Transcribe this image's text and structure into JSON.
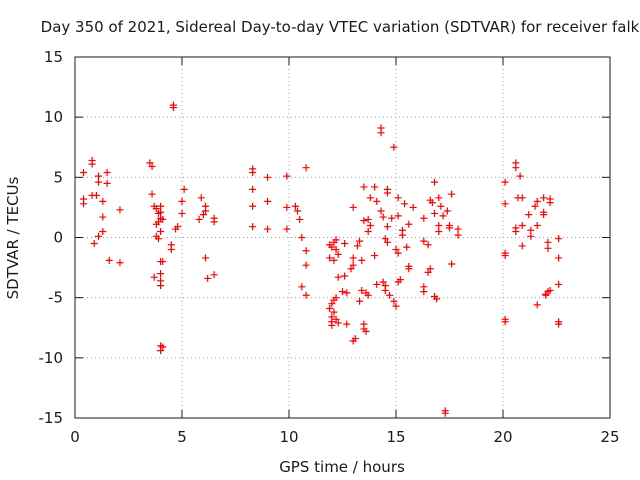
{
  "chart_data": {
    "type": "scatter",
    "title": "Day 350 of 2021, Sidereal Day-to-day VTEC variation (SDTVAR) for receiver falk",
    "xlabel": "GPS time / hours",
    "ylabel": "SDTVAR / TECUs",
    "xlim": [
      0,
      25
    ],
    "ylim": [
      -15,
      15
    ],
    "xticks": [
      0,
      5,
      10,
      15,
      20,
      25
    ],
    "yticks": [
      -15,
      -10,
      -5,
      0,
      5,
      10,
      15
    ],
    "grid": true,
    "marker": "+",
    "color": "#ff0000",
    "points": [
      [
        0.4,
        5.4
      ],
      [
        0.4,
        3.2
      ],
      [
        0.4,
        2.8
      ],
      [
        0.8,
        6.4
      ],
      [
        0.8,
        6.1
      ],
      [
        0.8,
        3.5
      ],
      [
        0.9,
        -0.5
      ],
      [
        1.0,
        3.5
      ],
      [
        1.1,
        5.1
      ],
      [
        1.1,
        4.6
      ],
      [
        1.1,
        0.1
      ],
      [
        1.3,
        3.0
      ],
      [
        1.3,
        1.7
      ],
      [
        1.3,
        0.5
      ],
      [
        1.5,
        5.4
      ],
      [
        1.5,
        4.5
      ],
      [
        1.6,
        -1.9
      ],
      [
        2.1,
        2.3
      ],
      [
        2.1,
        -2.1
      ],
      [
        3.5,
        6.2
      ],
      [
        3.6,
        5.9
      ],
      [
        3.6,
        3.6
      ],
      [
        3.7,
        2.6
      ],
      [
        3.7,
        -3.3
      ],
      [
        3.8,
        2.4
      ],
      [
        3.8,
        1.1
      ],
      [
        3.8,
        0.1
      ],
      [
        3.9,
        2.0
      ],
      [
        3.9,
        1.3
      ],
      [
        3.9,
        -0.1
      ],
      [
        4.0,
        2.6
      ],
      [
        4.0,
        2.1
      ],
      [
        4.0,
        1.6
      ],
      [
        4.0,
        0.5
      ],
      [
        4.0,
        -2.0
      ],
      [
        4.0,
        -3.0
      ],
      [
        4.0,
        -3.6
      ],
      [
        4.0,
        -4.0
      ],
      [
        4.0,
        -9.0
      ],
      [
        4.0,
        -9.4
      ],
      [
        4.1,
        1.5
      ],
      [
        4.1,
        -9.1
      ],
      [
        4.1,
        -2.0
      ],
      [
        4.5,
        -0.6
      ],
      [
        4.5,
        -1.0
      ],
      [
        4.6,
        11.0
      ],
      [
        4.6,
        10.8
      ],
      [
        4.7,
        0.7
      ],
      [
        4.8,
        0.9
      ],
      [
        5.0,
        2.0
      ],
      [
        5.0,
        3.0
      ],
      [
        5.1,
        4.0
      ],
      [
        5.8,
        1.5
      ],
      [
        5.9,
        3.3
      ],
      [
        6.0,
        1.9
      ],
      [
        6.1,
        2.6
      ],
      [
        6.1,
        2.2
      ],
      [
        6.1,
        -1.7
      ],
      [
        6.2,
        -3.4
      ],
      [
        6.5,
        1.6
      ],
      [
        6.5,
        1.3
      ],
      [
        6.5,
        -3.1
      ],
      [
        8.3,
        5.7
      ],
      [
        8.3,
        5.4
      ],
      [
        8.3,
        4.0
      ],
      [
        8.3,
        2.6
      ],
      [
        8.3,
        0.9
      ],
      [
        9.0,
        5.0
      ],
      [
        9.0,
        3.0
      ],
      [
        9.0,
        0.7
      ],
      [
        9.9,
        5.1
      ],
      [
        9.9,
        2.5
      ],
      [
        9.9,
        0.7
      ],
      [
        10.3,
        2.6
      ],
      [
        10.4,
        2.2
      ],
      [
        10.5,
        1.5
      ],
      [
        10.6,
        0.0
      ],
      [
        10.6,
        -4.1
      ],
      [
        10.8,
        5.8
      ],
      [
        10.8,
        -2.3
      ],
      [
        10.8,
        -1.1
      ],
      [
        10.8,
        -4.8
      ],
      [
        11.9,
        -0.6
      ],
      [
        11.9,
        -1.7
      ],
      [
        11.9,
        -5.9
      ],
      [
        12.0,
        -0.8
      ],
      [
        12.0,
        -5.5
      ],
      [
        12.0,
        -6.6
      ],
      [
        12.0,
        -7.0
      ],
      [
        12.0,
        -7.3
      ],
      [
        12.1,
        -0.4
      ],
      [
        12.1,
        -1.9
      ],
      [
        12.1,
        -5.2
      ],
      [
        12.1,
        -6.2
      ],
      [
        12.2,
        -0.2
      ],
      [
        12.2,
        -1.0
      ],
      [
        12.2,
        -5.0
      ],
      [
        12.2,
        -6.8
      ],
      [
        12.3,
        -1.4
      ],
      [
        12.3,
        -3.3
      ],
      [
        12.3,
        -7.1
      ],
      [
        12.5,
        -4.5
      ],
      [
        12.6,
        -0.5
      ],
      [
        12.6,
        -3.2
      ],
      [
        12.7,
        -4.6
      ],
      [
        12.7,
        -7.2
      ],
      [
        12.9,
        -2.6
      ],
      [
        13.0,
        2.5
      ],
      [
        13.0,
        -1.7
      ],
      [
        13.0,
        -2.3
      ],
      [
        13.0,
        -8.6
      ],
      [
        13.1,
        -8.4
      ],
      [
        13.2,
        -0.7
      ],
      [
        13.3,
        -0.3
      ],
      [
        13.3,
        -5.3
      ],
      [
        13.4,
        -1.9
      ],
      [
        13.4,
        -4.4
      ],
      [
        13.5,
        4.2
      ],
      [
        13.5,
        1.4
      ],
      [
        13.5,
        -7.2
      ],
      [
        13.5,
        -7.6
      ],
      [
        13.6,
        -4.6
      ],
      [
        13.6,
        -7.8
      ],
      [
        13.7,
        1.5
      ],
      [
        13.7,
        0.5
      ],
      [
        13.7,
        -4.8
      ],
      [
        13.8,
        3.3
      ],
      [
        13.8,
        1.0
      ],
      [
        14.0,
        4.2
      ],
      [
        14.0,
        -1.5
      ],
      [
        14.1,
        3.0
      ],
      [
        14.1,
        -3.9
      ],
      [
        14.3,
        9.1
      ],
      [
        14.3,
        8.7
      ],
      [
        14.3,
        2.2
      ],
      [
        14.4,
        1.7
      ],
      [
        14.4,
        -3.7
      ],
      [
        14.5,
        -0.1
      ],
      [
        14.5,
        -4.0
      ],
      [
        14.5,
        -4.4
      ],
      [
        14.6,
        4.0
      ],
      [
        14.6,
        3.7
      ],
      [
        14.6,
        0.9
      ],
      [
        14.6,
        -0.4
      ],
      [
        14.7,
        -4.8
      ],
      [
        14.8,
        1.6
      ],
      [
        14.9,
        7.5
      ],
      [
        14.9,
        -5.3
      ],
      [
        15.0,
        -1.0
      ],
      [
        15.0,
        -5.7
      ],
      [
        15.1,
        3.3
      ],
      [
        15.1,
        1.8
      ],
      [
        15.1,
        -1.3
      ],
      [
        15.1,
        -3.7
      ],
      [
        15.2,
        -3.5
      ],
      [
        15.3,
        0.6
      ],
      [
        15.3,
        0.2
      ],
      [
        15.4,
        2.8
      ],
      [
        15.5,
        -0.8
      ],
      [
        15.6,
        -2.4
      ],
      [
        15.6,
        -2.6
      ],
      [
        15.6,
        1.1
      ],
      [
        15.8,
        2.5
      ],
      [
        16.3,
        1.6
      ],
      [
        16.3,
        -0.3
      ],
      [
        16.3,
        -4.1
      ],
      [
        16.3,
        -4.5
      ],
      [
        16.5,
        -0.6
      ],
      [
        16.5,
        -2.9
      ],
      [
        16.6,
        3.1
      ],
      [
        16.6,
        -2.6
      ],
      [
        16.7,
        2.9
      ],
      [
        16.8,
        2.0
      ],
      [
        16.8,
        4.6
      ],
      [
        16.8,
        -4.9
      ],
      [
        16.9,
        -5.1
      ],
      [
        17.0,
        3.3
      ],
      [
        17.0,
        1.0
      ],
      [
        17.0,
        0.5
      ],
      [
        17.1,
        2.6
      ],
      [
        17.2,
        1.8
      ],
      [
        17.3,
        -14.4
      ],
      [
        17.3,
        -14.6
      ],
      [
        17.4,
        2.2
      ],
      [
        17.5,
        1.0
      ],
      [
        17.5,
        0.8
      ],
      [
        17.6,
        3.6
      ],
      [
        17.6,
        -2.2
      ],
      [
        17.9,
        0.7
      ],
      [
        17.9,
        0.2
      ],
      [
        20.1,
        4.6
      ],
      [
        20.1,
        2.8
      ],
      [
        20.1,
        -1.3
      ],
      [
        20.1,
        -1.5
      ],
      [
        20.1,
        -6.8
      ],
      [
        20.1,
        -7.0
      ],
      [
        20.6,
        6.2
      ],
      [
        20.6,
        5.8
      ],
      [
        20.6,
        0.8
      ],
      [
        20.6,
        0.5
      ],
      [
        20.7,
        3.3
      ],
      [
        20.8,
        5.1
      ],
      [
        20.9,
        3.3
      ],
      [
        20.9,
        1.0
      ],
      [
        20.9,
        -0.7
      ],
      [
        21.2,
        1.9
      ],
      [
        21.3,
        0.6
      ],
      [
        21.3,
        0.1
      ],
      [
        21.5,
        2.6
      ],
      [
        21.6,
        3.0
      ],
      [
        21.6,
        -5.6
      ],
      [
        21.6,
        1.0
      ],
      [
        21.9,
        2.1
      ],
      [
        21.9,
        1.9
      ],
      [
        21.9,
        3.3
      ],
      [
        22.0,
        -4.8
      ],
      [
        22.0,
        -4.7
      ],
      [
        22.1,
        -4.5
      ],
      [
        22.1,
        -0.4
      ],
      [
        22.1,
        -0.9
      ],
      [
        22.2,
        3.2
      ],
      [
        22.2,
        2.9
      ],
      [
        22.2,
        -4.4
      ],
      [
        22.6,
        -0.1
      ],
      [
        22.6,
        -1.7
      ],
      [
        22.6,
        -3.9
      ],
      [
        22.6,
        -7.0
      ],
      [
        22.6,
        -7.2
      ]
    ]
  }
}
